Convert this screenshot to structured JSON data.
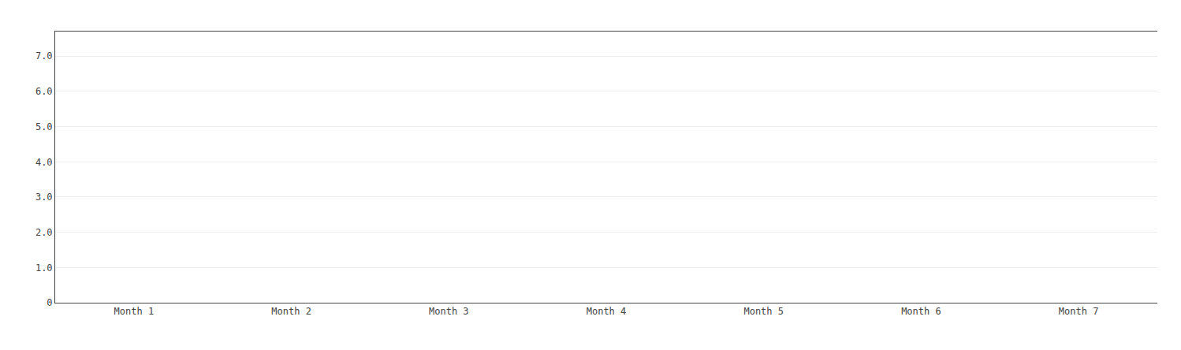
{
  "chart_data": {
    "type": "line",
    "categories": [
      "Month 1",
      "Month 2",
      "Month 3",
      "Month 4",
      "Month 5",
      "Month 6",
      "Month 7"
    ],
    "values": [
      null,
      null,
      null,
      null,
      null,
      null,
      null
    ],
    "ylim": [
      0,
      7.7
    ],
    "yticks": [
      0,
      {
        "value": 1.0,
        "label": "1.0"
      },
      {
        "value": 2.0,
        "label": "2.0"
      },
      {
        "value": 3.0,
        "label": "3.0"
      },
      {
        "value": 4.0,
        "label": "4.0"
      },
      {
        "value": 5.0,
        "label": "5.0"
      },
      {
        "value": 6.0,
        "label": "6.0"
      },
      {
        "value": 7.0,
        "label": "7.0"
      }
    ],
    "grid": true
  }
}
